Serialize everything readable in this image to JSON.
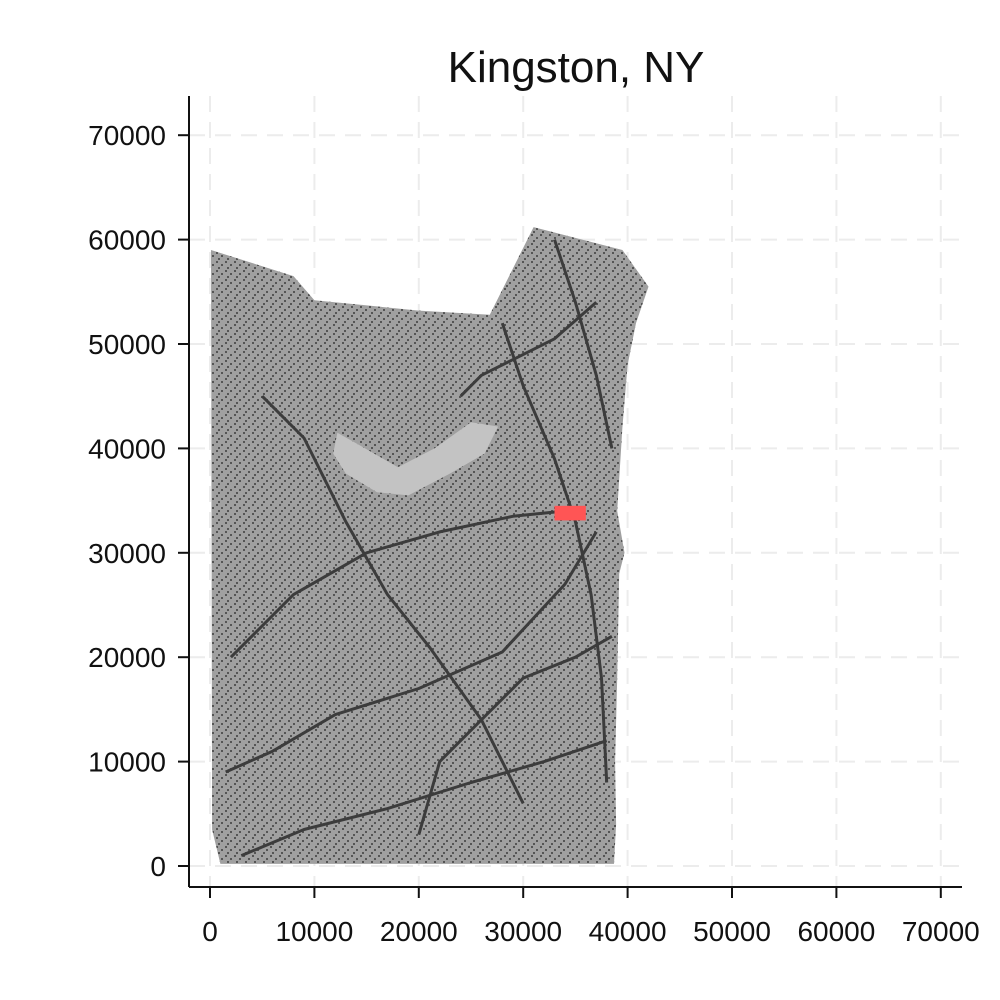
{
  "chart_data": {
    "type": "raster-map",
    "title": "Kingston, NY",
    "xlabel": "",
    "ylabel": "",
    "xlim": [
      -2000,
      72000
    ],
    "ylim": [
      -2000,
      72000
    ],
    "x_ticks": [
      "0",
      "10000",
      "20000",
      "30000",
      "40000",
      "50000",
      "60000",
      "70000"
    ],
    "y_ticks": [
      "0",
      "10000",
      "20000",
      "30000",
      "40000",
      "50000",
      "60000",
      "70000"
    ],
    "grid": true,
    "layers": [
      {
        "name": "land",
        "color": "#a0a0a0"
      },
      {
        "name": "water/open",
        "color": "#c3c3c3"
      },
      {
        "name": "developed",
        "color": "#3c3c3c"
      },
      {
        "name": "city",
        "color": "#ff5555"
      }
    ],
    "boundary": [
      [
        100,
        59000
      ],
      [
        8000,
        56500
      ],
      [
        10000,
        54200
      ],
      [
        20000,
        53200
      ],
      [
        26800,
        52800
      ],
      [
        31000,
        61200
      ],
      [
        39500,
        59000
      ],
      [
        42000,
        55500
      ],
      [
        40800,
        52000
      ],
      [
        40000,
        48000
      ],
      [
        39500,
        42000
      ],
      [
        39000,
        34000
      ],
      [
        39700,
        30000
      ],
      [
        39200,
        28000
      ],
      [
        39000,
        18000
      ],
      [
        38800,
        10000
      ],
      [
        38900,
        4000
      ],
      [
        38700,
        200
      ],
      [
        1000,
        200
      ],
      [
        200,
        3500
      ]
    ],
    "lake": [
      [
        12200,
        41500
      ],
      [
        14500,
        40200
      ],
      [
        18000,
        38200
      ],
      [
        21500,
        40000
      ],
      [
        25000,
        42500
      ],
      [
        27600,
        42100
      ],
      [
        26300,
        39500
      ],
      [
        23000,
        37600
      ],
      [
        19000,
        35500
      ],
      [
        16000,
        35800
      ],
      [
        13000,
        37600
      ],
      [
        11800,
        39500
      ]
    ],
    "city_marker": {
      "x": 34500,
      "y": 33800,
      "width": 3000,
      "height": 1400
    }
  }
}
